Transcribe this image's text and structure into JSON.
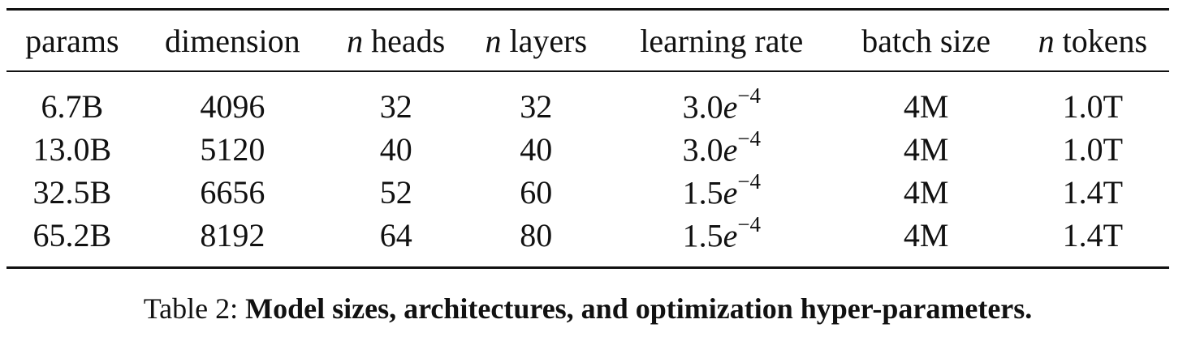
{
  "table": {
    "headers": [
      {
        "prefix": "",
        "text": "params"
      },
      {
        "prefix": "",
        "text": "dimension"
      },
      {
        "prefix": "n",
        "text": " heads"
      },
      {
        "prefix": "n",
        "text": " layers"
      },
      {
        "prefix": "",
        "text": "learning rate"
      },
      {
        "prefix": "",
        "text": "batch size"
      },
      {
        "prefix": "n",
        "text": " tokens"
      }
    ],
    "rows": [
      {
        "params": "6.7B",
        "dimension": "4096",
        "heads": "32",
        "layers": "32",
        "lr_base": "3.0",
        "lr_e": "e",
        "lr_exp": "−4",
        "batch": "4M",
        "tokens": "1.0T"
      },
      {
        "params": "13.0B",
        "dimension": "5120",
        "heads": "40",
        "layers": "40",
        "lr_base": "3.0",
        "lr_e": "e",
        "lr_exp": "−4",
        "batch": "4M",
        "tokens": "1.0T"
      },
      {
        "params": "32.5B",
        "dimension": "6656",
        "heads": "52",
        "layers": "60",
        "lr_base": "1.5",
        "lr_e": "e",
        "lr_exp": "−4",
        "batch": "4M",
        "tokens": "1.4T"
      },
      {
        "params": "65.2B",
        "dimension": "8192",
        "heads": "64",
        "layers": "80",
        "lr_base": "1.5",
        "lr_e": "e",
        "lr_exp": "−4",
        "batch": "4M",
        "tokens": "1.4T"
      }
    ]
  },
  "caption": {
    "label": "Table 2: ",
    "text": "Model sizes, architectures, and optimization hyper-parameters."
  }
}
